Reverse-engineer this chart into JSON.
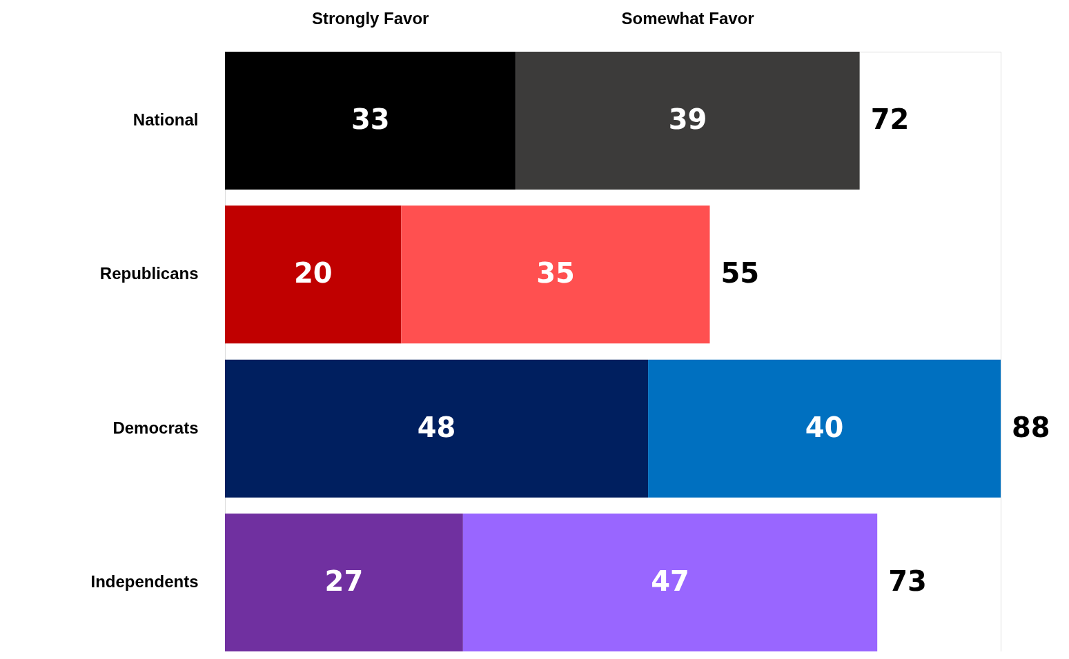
{
  "chart_data": {
    "type": "bar",
    "orientation": "horizontal",
    "stacked": true,
    "data_labels": true,
    "tick_labels": "y",
    "categories": [
      "National",
      "Republicans",
      "Democrats",
      "Independents"
    ],
    "series": [
      {
        "name": "Strongly Favor",
        "values": [
          33,
          20,
          48,
          27
        ],
        "colors": [
          "#000000",
          "#c00000",
          "#001f5f",
          "#7030a0"
        ]
      },
      {
        "name": "Somewhat Favor",
        "values": [
          39,
          35,
          40,
          47
        ],
        "colors": [
          "#3c3b3a",
          "#ff5050",
          "#0070c0",
          "#9966ff"
        ]
      }
    ],
    "totals": [
      "72",
      "55",
      "88",
      "73"
    ]
  }
}
